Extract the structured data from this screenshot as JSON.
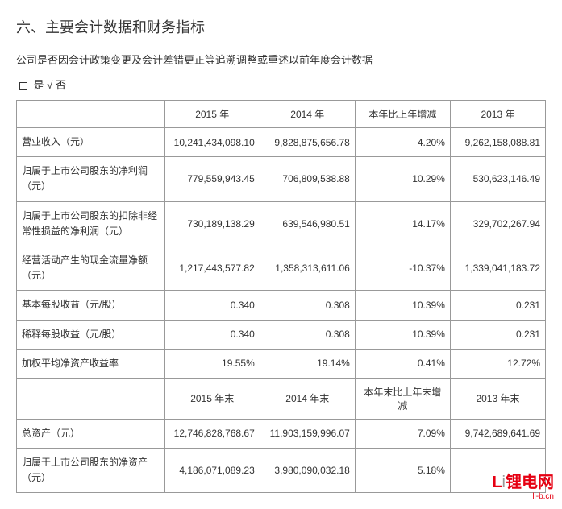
{
  "section_title": "六、主要会计数据和财务指标",
  "subtitle": "公司是否因会计政策变更及会计差错更正等追溯调整或重述以前年度会计数据",
  "checkbox": {
    "yes_label": "是",
    "checkmark": "√",
    "no_label": "否"
  },
  "table": {
    "header_row1": {
      "blank": "",
      "col1": "2015 年",
      "col2": "2014 年",
      "col3": "本年比上年增减",
      "col4": "2013 年"
    },
    "rows1": [
      {
        "label": "营业收入（元）",
        "c1": "10,241,434,098.10",
        "c2": "9,828,875,656.78",
        "c3": "4.20%",
        "c4": "9,262,158,088.81"
      },
      {
        "label": "归属于上市公司股东的净利润（元）",
        "c1": "779,559,943.45",
        "c2": "706,809,538.88",
        "c3": "10.29%",
        "c4": "530,623,146.49"
      },
      {
        "label": "归属于上市公司股东的扣除非经常性损益的净利润（元）",
        "c1": "730,189,138.29",
        "c2": "639,546,980.51",
        "c3": "14.17%",
        "c4": "329,702,267.94"
      },
      {
        "label": "经营活动产生的现金流量净额（元）",
        "c1": "1,217,443,577.82",
        "c2": "1,358,313,611.06",
        "c3": "-10.37%",
        "c4": "1,339,041,183.72"
      },
      {
        "label": "基本每股收益（元/股）",
        "c1": "0.340",
        "c2": "0.308",
        "c3": "10.39%",
        "c4": "0.231"
      },
      {
        "label": "稀释每股收益（元/股）",
        "c1": "0.340",
        "c2": "0.308",
        "c3": "10.39%",
        "c4": "0.231"
      },
      {
        "label": "加权平均净资产收益率",
        "c1": "19.55%",
        "c2": "19.14%",
        "c3": "0.41%",
        "c4": "12.72%"
      }
    ],
    "header_row2": {
      "blank": "",
      "col1": "2015 年末",
      "col2": "2014 年末",
      "col3": "本年末比上年末增减",
      "col4": "2013 年末"
    },
    "rows2": [
      {
        "label": "总资产（元）",
        "c1": "12,746,828,768.67",
        "c2": "11,903,159,996.07",
        "c3": "7.09%",
        "c4": "9,742,689,641.69"
      },
      {
        "label": "归属于上市公司股东的净资产（元）",
        "c1": "4,186,071,089.23",
        "c2": "3,980,090,032.18",
        "c3": "5.18%",
        "c4": ""
      }
    ]
  },
  "watermark": {
    "brand_red": "L",
    "brand_rest": "锂电网",
    "url": "li-b.cn"
  }
}
